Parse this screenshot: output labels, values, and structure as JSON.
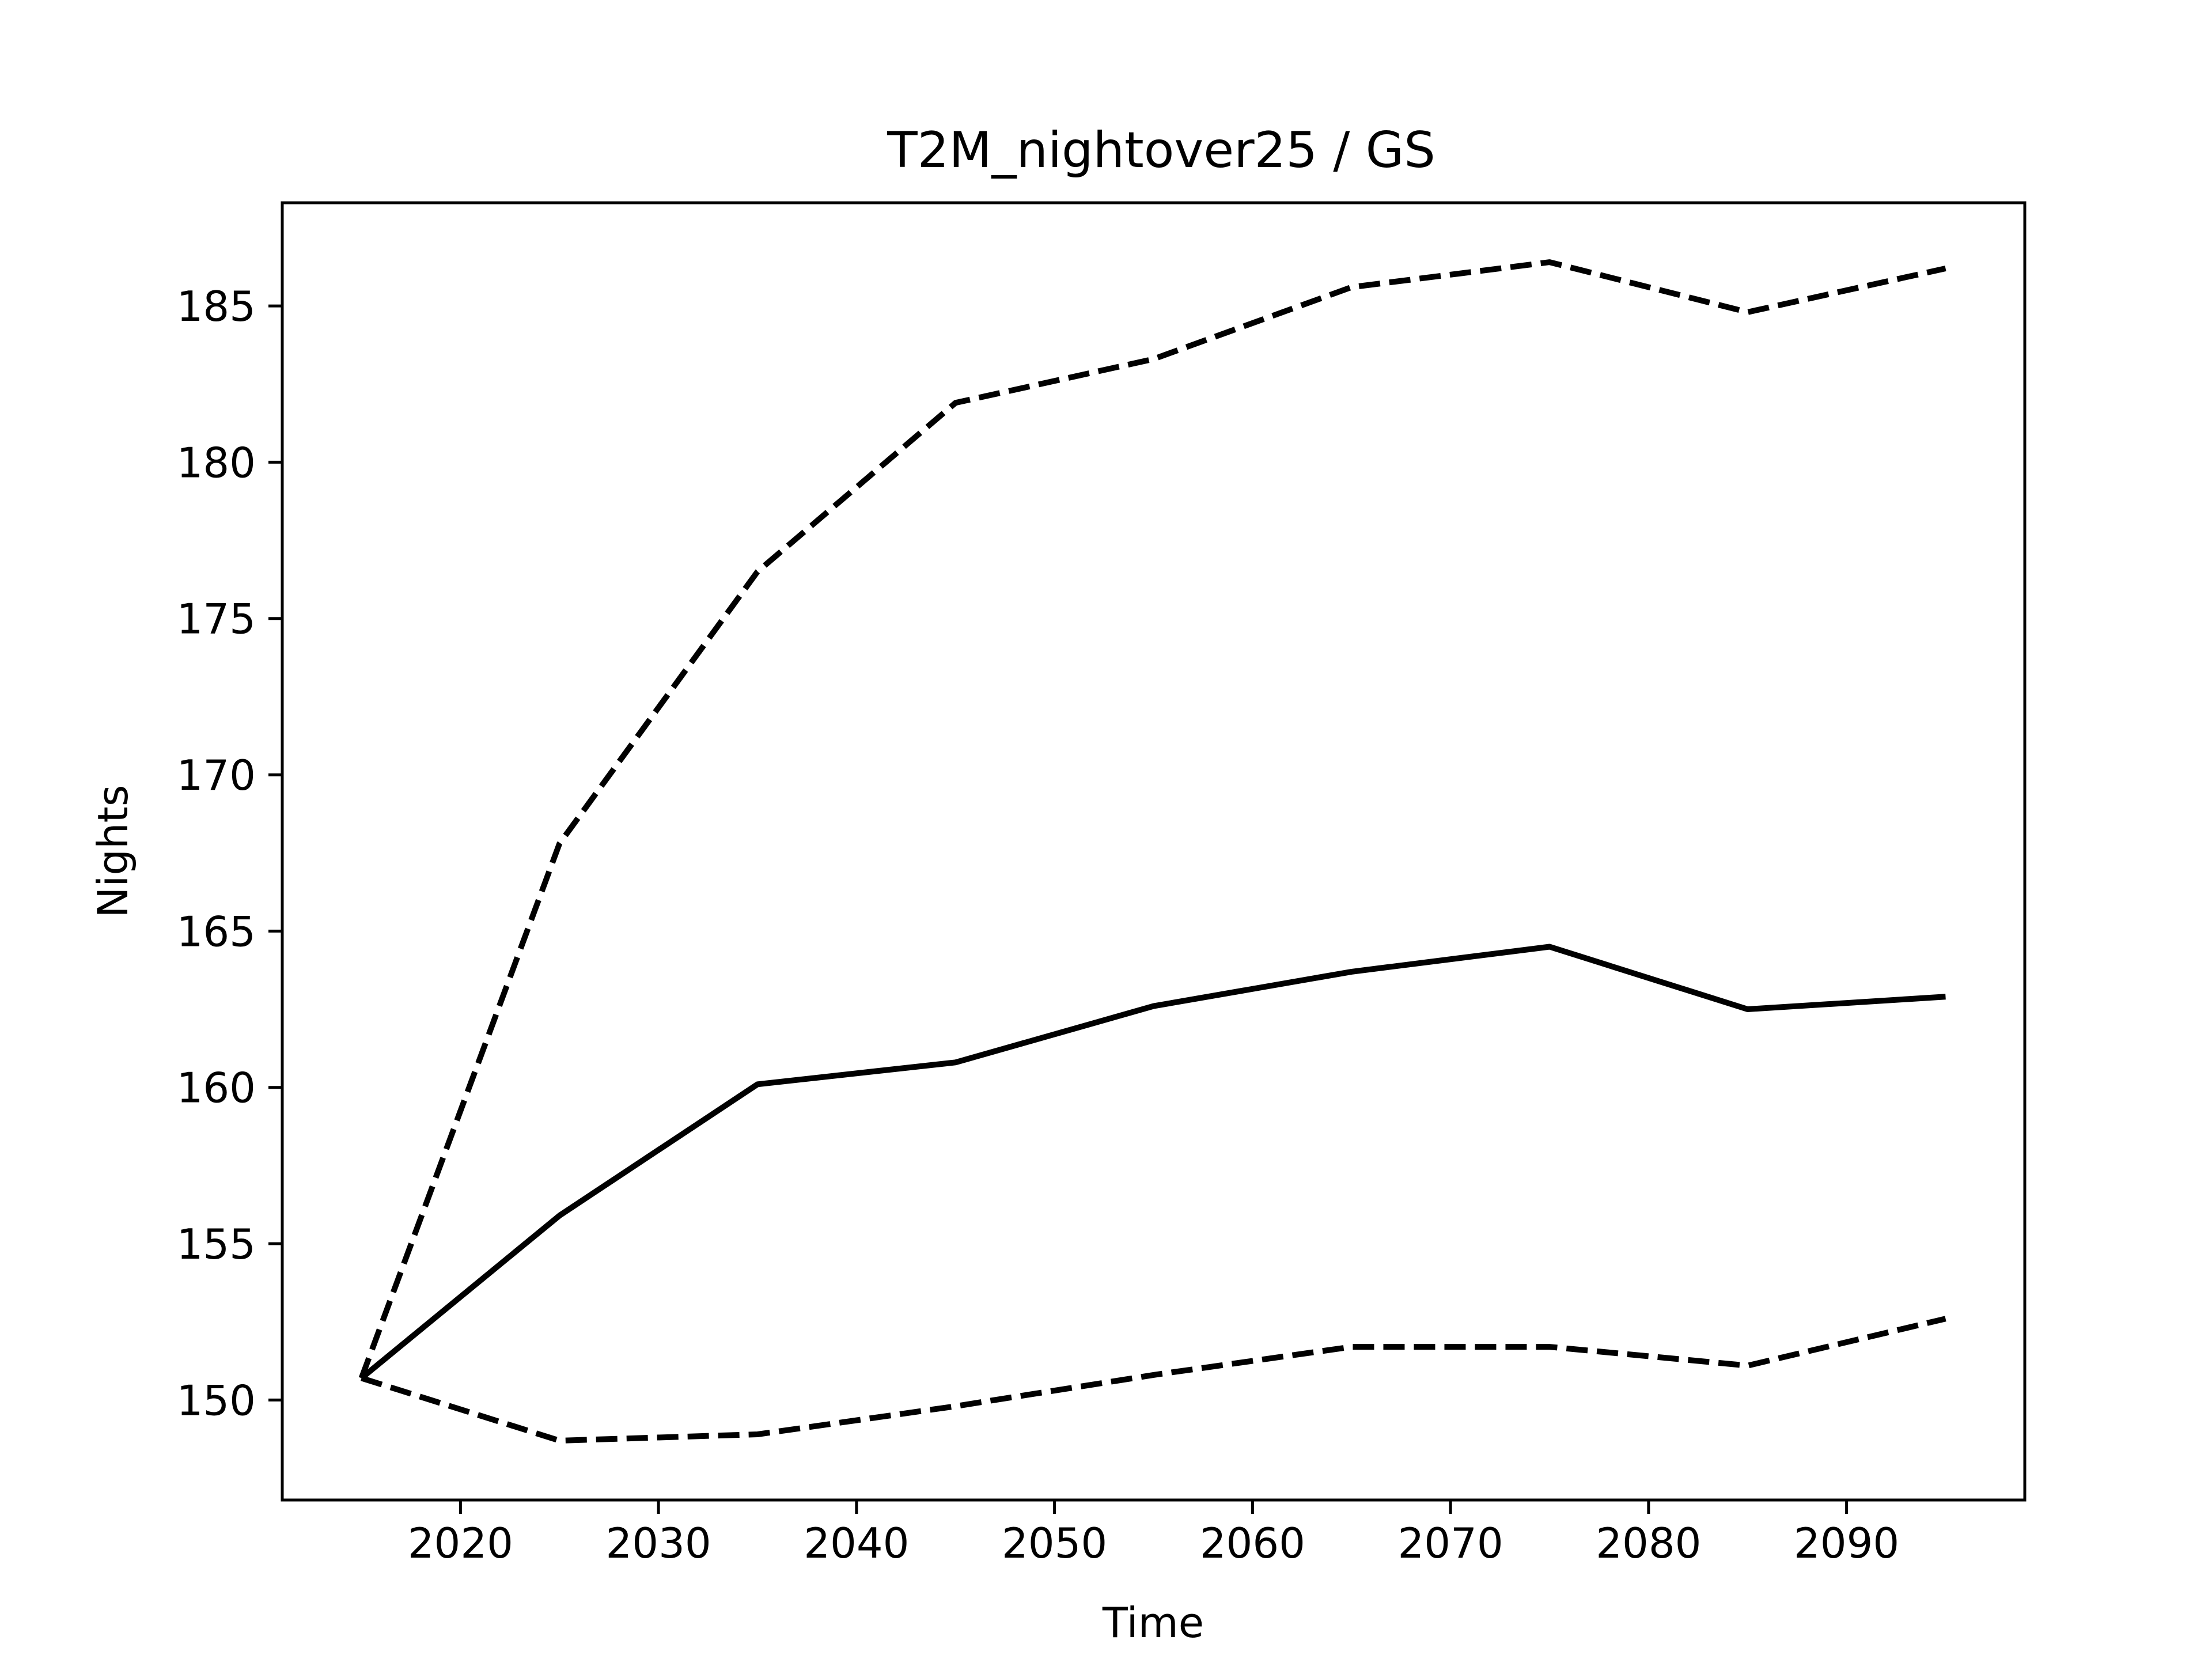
{
  "chart_data": {
    "type": "line",
    "title": "T2M_nightover25 / GS",
    "xlabel": "Time",
    "ylabel": "Nights",
    "xlim": [
      2011,
      2099
    ],
    "ylim": [
      146.8,
      188.3
    ],
    "x_ticks": [
      2020,
      2030,
      2040,
      2050,
      2060,
      2070,
      2080,
      2090
    ],
    "y_ticks": [
      150,
      155,
      160,
      165,
      170,
      175,
      180,
      185
    ],
    "grid": false,
    "legend": "none",
    "x": [
      2015,
      2025,
      2035,
      2045,
      2055,
      2065,
      2075,
      2085,
      2095
    ],
    "series": [
      {
        "style": "solid",
        "color": "#000000",
        "values": [
          150.7,
          155.9,
          160.1,
          160.8,
          162.6,
          163.7,
          164.5,
          162.5,
          162.9
        ]
      },
      {
        "style": "dashed",
        "color": "#000000",
        "values": [
          150.7,
          167.8,
          176.5,
          181.9,
          183.3,
          185.6,
          186.4,
          184.8,
          186.2
        ]
      },
      {
        "style": "dashed",
        "color": "#000000",
        "values": [
          150.7,
          148.7,
          148.9,
          149.8,
          150.8,
          151.7,
          151.7,
          151.1,
          152.6
        ]
      }
    ]
  }
}
